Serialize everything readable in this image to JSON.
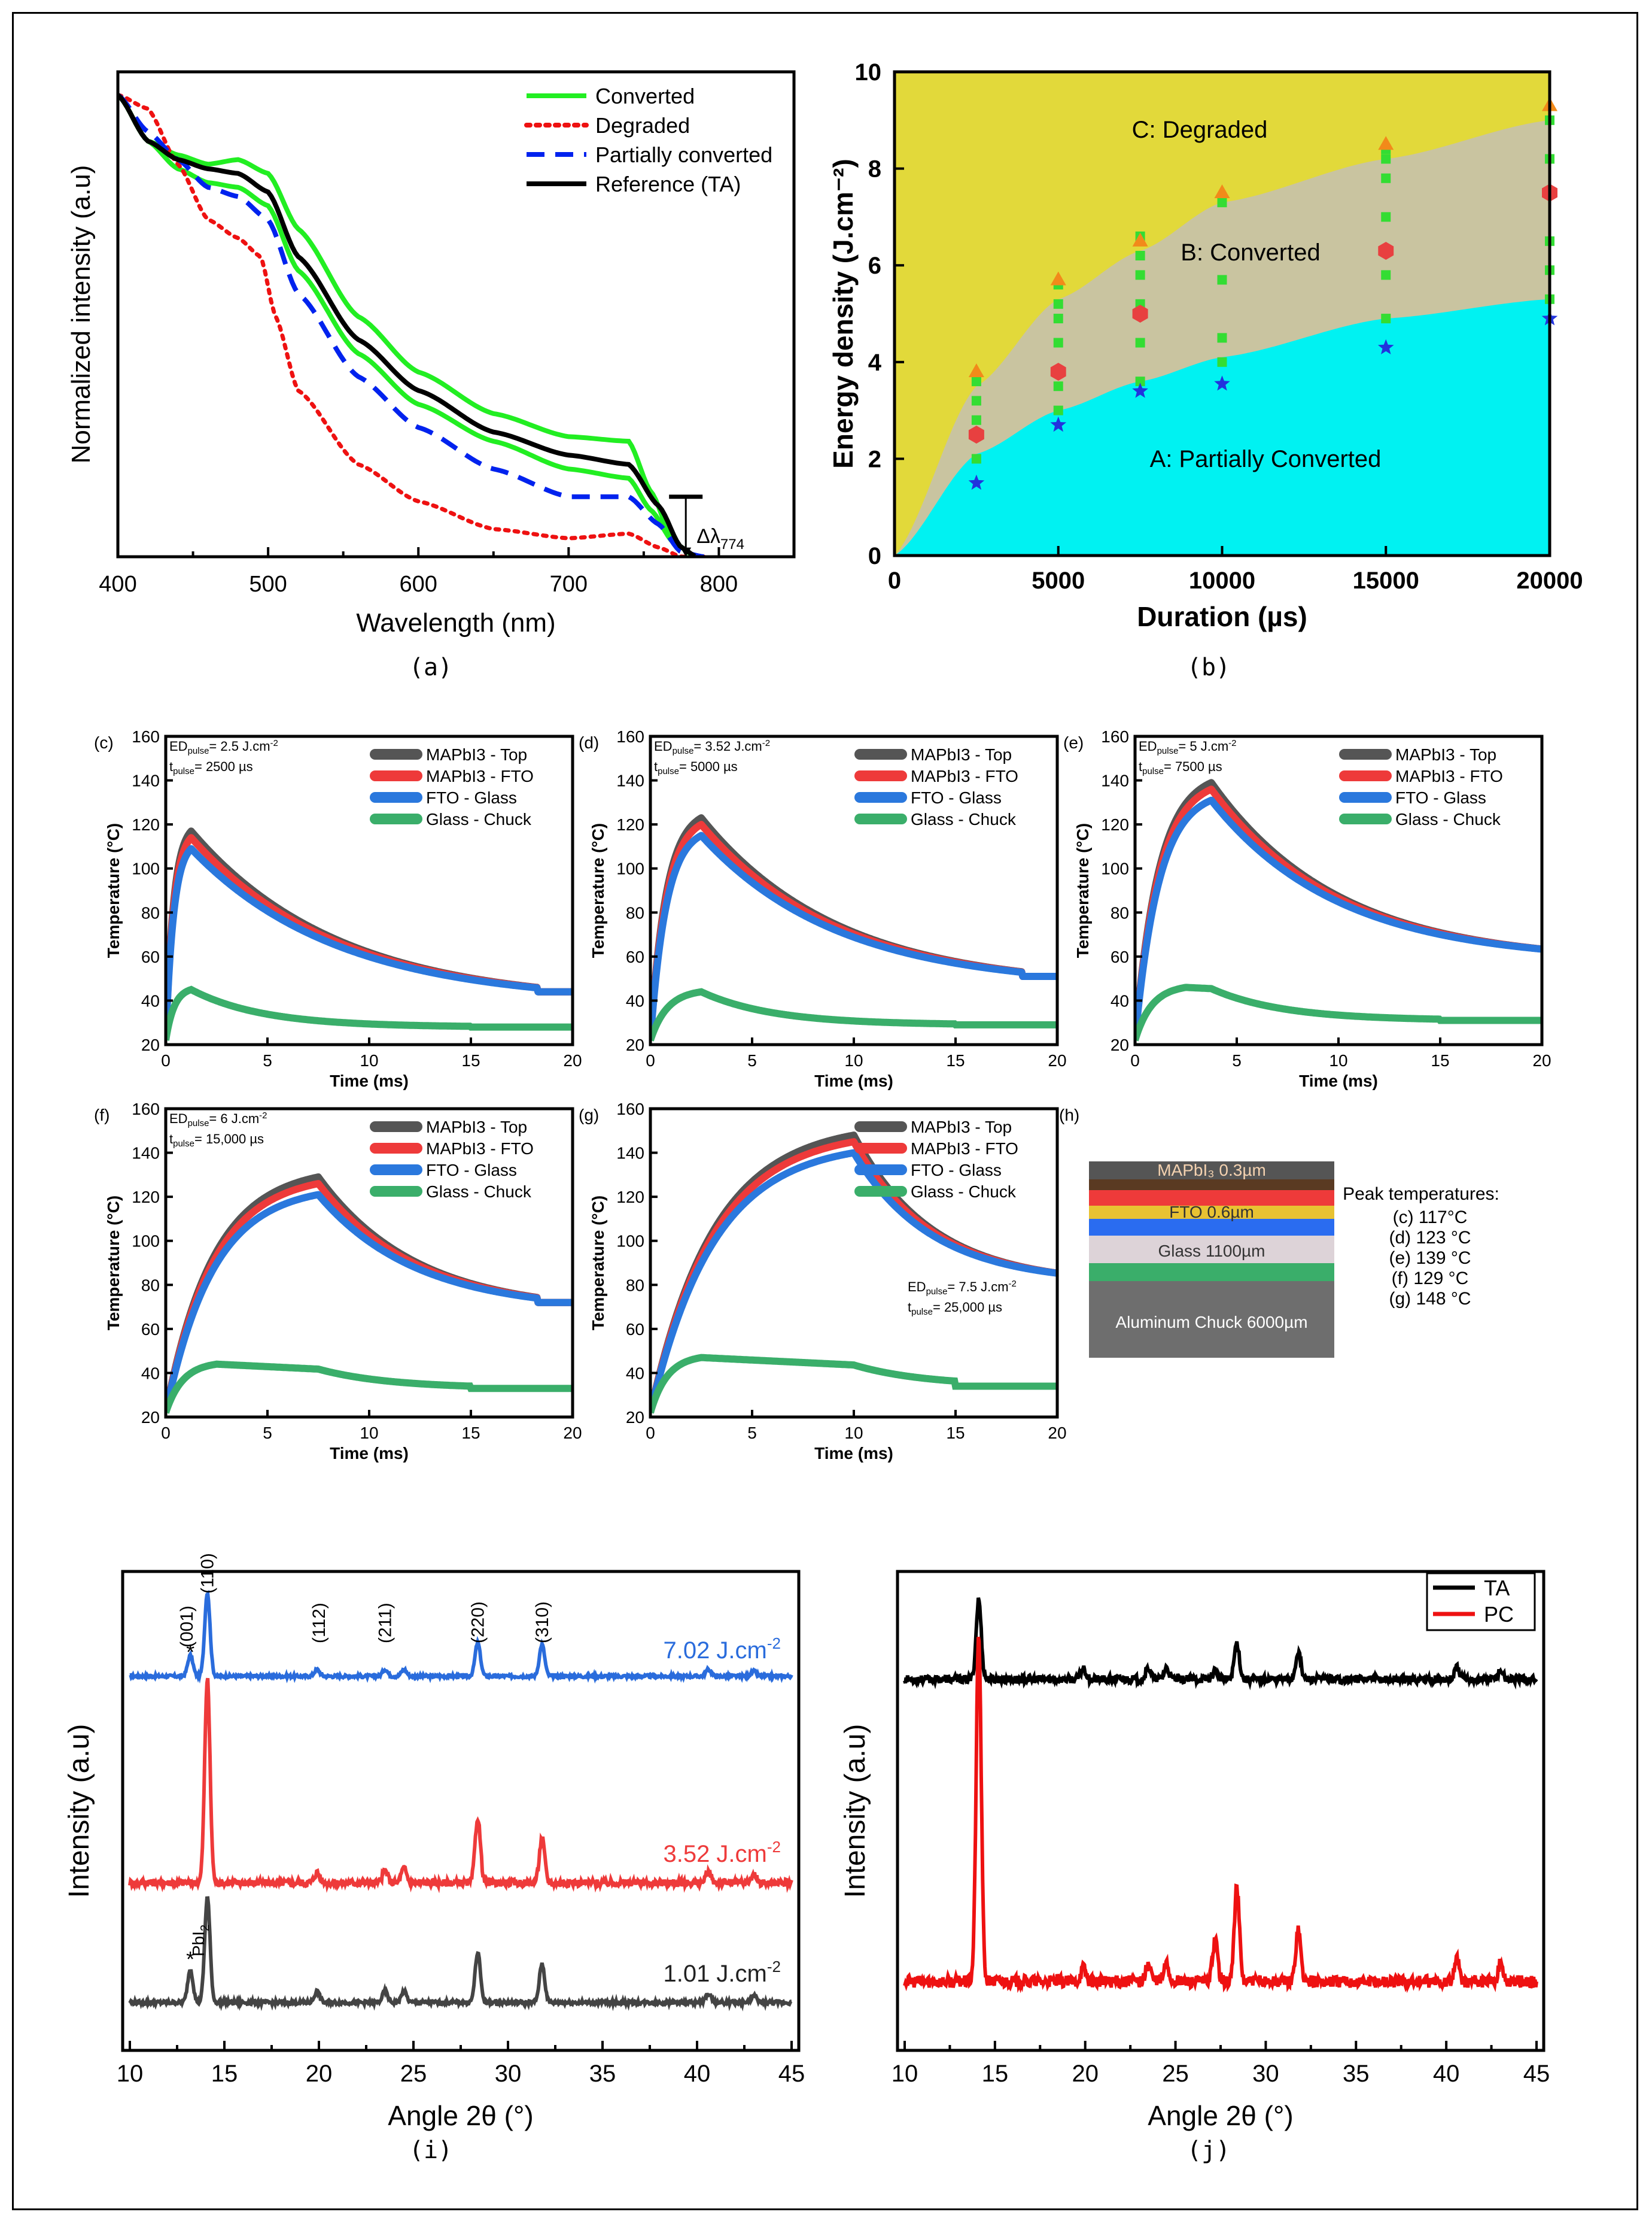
{
  "figure": {
    "captions": [
      "(a)",
      "(b)",
      "(i)",
      "(j)"
    ]
  },
  "chart_data": [
    {
      "id": "a",
      "type": "line",
      "title": "",
      "xlabel": "Wavelength (nm)",
      "ylabel": "Normalized intensity (a.u)",
      "xlim": [
        400,
        850
      ],
      "ylim": [
        0,
        1.05
      ],
      "xticks": [
        400,
        500,
        600,
        700,
        800
      ],
      "annotation": "Δλ774",
      "series": [
        {
          "name": "Converted",
          "color": "#22ee22",
          "style": "solid",
          "x": [
            400,
            420,
            440,
            460,
            480,
            500,
            520,
            560,
            600,
            650,
            700,
            740,
            755,
            770,
            785
          ],
          "y": [
            1.0,
            0.9,
            0.84,
            0.81,
            0.8,
            0.76,
            0.62,
            0.44,
            0.33,
            0.25,
            0.19,
            0.17,
            0.1,
            0.03,
            0.0
          ]
        },
        {
          "name": "Converted (upper)",
          "color": "#22ee22",
          "style": "solid",
          "x": [
            400,
            420,
            440,
            460,
            480,
            500,
            520,
            560,
            600,
            650,
            700,
            740,
            755,
            770,
            785
          ],
          "y": [
            1.0,
            0.9,
            0.87,
            0.85,
            0.86,
            0.83,
            0.71,
            0.52,
            0.4,
            0.31,
            0.26,
            0.25,
            0.14,
            0.03,
            0.0
          ]
        },
        {
          "name": "Degraded",
          "color": "#ee1111",
          "style": "dotted",
          "x": [
            400,
            420,
            440,
            460,
            480,
            495,
            505,
            520,
            560,
            600,
            650,
            700,
            740,
            760,
            775,
            790
          ],
          "y": [
            1.0,
            0.97,
            0.85,
            0.73,
            0.69,
            0.65,
            0.52,
            0.36,
            0.2,
            0.12,
            0.06,
            0.04,
            0.05,
            0.02,
            0.0,
            0.0
          ]
        },
        {
          "name": "Partially converted",
          "color": "#0022ee",
          "style": "dashed",
          "x": [
            400,
            420,
            440,
            460,
            480,
            500,
            520,
            560,
            600,
            650,
            700,
            740,
            760,
            775,
            790
          ],
          "y": [
            1.0,
            0.92,
            0.86,
            0.8,
            0.78,
            0.73,
            0.57,
            0.39,
            0.28,
            0.19,
            0.13,
            0.13,
            0.07,
            0.01,
            0.0
          ]
        },
        {
          "name": "Reference (TA)",
          "color": "#000000",
          "style": "solid",
          "x": [
            400,
            420,
            440,
            460,
            480,
            500,
            520,
            560,
            600,
            650,
            700,
            740,
            760,
            775,
            785
          ],
          "y": [
            1.0,
            0.9,
            0.86,
            0.84,
            0.83,
            0.79,
            0.65,
            0.47,
            0.36,
            0.27,
            0.22,
            0.2,
            0.11,
            0.02,
            0.0
          ]
        }
      ]
    },
    {
      "id": "b",
      "type": "area",
      "xlabel": "Duration (µs)",
      "ylabel": "Energy density (J.cm⁻²)",
      "xlim": [
        0,
        20000
      ],
      "ylim": [
        0,
        10
      ],
      "xticks": [
        0,
        5000,
        10000,
        15000,
        20000
      ],
      "yticks": [
        0,
        2,
        4,
        6,
        8,
        10
      ],
      "regions": [
        {
          "name": "C: Degraded",
          "color": "#e2d93a"
        },
        {
          "name": "B: Converted",
          "color": "#c9c4a0"
        },
        {
          "name": "A: Partially Converted",
          "color": "#00f2f2"
        }
      ],
      "lower_boundary": {
        "x": [
          0,
          2500,
          5000,
          7500,
          10000,
          15000,
          20000
        ],
        "y": [
          0,
          2.1,
          3.0,
          3.6,
          4.1,
          4.9,
          5.3
        ]
      },
      "upper_boundary": {
        "x": [
          0,
          2500,
          5000,
          7500,
          10000,
          15000,
          20000
        ],
        "y": [
          0,
          3.5,
          5.3,
          6.3,
          7.3,
          8.2,
          9.0
        ]
      },
      "markers": {
        "orange_triangle": {
          "x": [
            2500,
            5000,
            7500,
            10000,
            15000,
            20000
          ],
          "y": [
            3.8,
            5.7,
            6.5,
            7.5,
            8.5,
            9.3
          ]
        },
        "red_hexagon": {
          "x": [
            2500,
            5000,
            7500,
            15000,
            20000
          ],
          "y": [
            2.5,
            3.8,
            5.0,
            6.3,
            7.5
          ]
        },
        "blue_star": {
          "x": [
            2500,
            5000,
            7500,
            10000,
            15000,
            20000
          ],
          "y": [
            1.5,
            2.7,
            3.4,
            3.55,
            4.3,
            4.9
          ]
        },
        "green_square": {
          "x": [
            2500,
            2500,
            2500,
            2500,
            5000,
            5000,
            5000,
            5000,
            5000,
            5000,
            7500,
            7500,
            7500,
            7500,
            7500,
            7500,
            10000,
            10000,
            10000,
            10000,
            15000,
            15000,
            15000,
            15000,
            15000,
            15000,
            20000,
            20000,
            20000,
            20000,
            20000
          ],
          "y": [
            2.0,
            2.8,
            3.2,
            3.6,
            3.0,
            3.5,
            4.4,
            4.9,
            5.2,
            5.6,
            3.6,
            4.4,
            5.2,
            5.8,
            6.2,
            6.6,
            4.0,
            4.5,
            5.7,
            7.3,
            4.9,
            5.8,
            7.0,
            7.8,
            8.2,
            8.4,
            5.3,
            5.9,
            6.5,
            8.2,
            9.0
          ]
        }
      }
    },
    {
      "id": "c",
      "type": "line",
      "panel": "(c)",
      "params": [
        "ED",
        "pulse",
        "= 2.5 J.cm",
        "-2",
        "t",
        "pulse",
        "= 2500 µs"
      ],
      "xlabel": "Time (ms)",
      "ylabel": "Temperature (°C)",
      "xlim": [
        0,
        20
      ],
      "ylim": [
        20,
        160
      ],
      "xticks": [
        0,
        5,
        10,
        15,
        20
      ],
      "yticks": [
        20,
        40,
        60,
        80,
        100,
        120,
        140,
        160
      ],
      "peak": 117,
      "pulse_ms": 1.25,
      "top_end": 44,
      "chuck_peak": 45,
      "chuck_end": 28,
      "series": [
        {
          "name": "MAPbI3 - Top",
          "color": "#555555"
        },
        {
          "name": "MAPbI3 - FTO",
          "color": "#ee3a3a"
        },
        {
          "name": "FTO - Glass",
          "color": "#2a78dd"
        },
        {
          "name": "Glass - Chuck",
          "color": "#3aae6a"
        }
      ]
    },
    {
      "id": "d",
      "type": "line",
      "panel": "(d)",
      "params": [
        "ED",
        "pulse",
        "= 3.52 J.cm",
        "-2",
        "t",
        "pulse",
        "= 5000 µs"
      ],
      "xlabel": "Time (ms)",
      "ylabel": "Temperature (°C)",
      "xlim": [
        0,
        20
      ],
      "ylim": [
        20,
        160
      ],
      "xticks": [
        0,
        5,
        10,
        15,
        20
      ],
      "yticks": [
        20,
        40,
        60,
        80,
        100,
        120,
        140,
        160
      ],
      "peak": 123,
      "pulse_ms": 2.5,
      "top_end": 51,
      "chuck_peak": 44,
      "chuck_end": 29,
      "series": [
        {
          "name": "MAPbI3 - Top",
          "color": "#555555"
        },
        {
          "name": "MAPbI3 - FTO",
          "color": "#ee3a3a"
        },
        {
          "name": "FTO - Glass",
          "color": "#2a78dd"
        },
        {
          "name": "Glass - Chuck",
          "color": "#3aae6a"
        }
      ]
    },
    {
      "id": "e",
      "type": "line",
      "panel": "(e)",
      "params": [
        "ED",
        "pulse",
        "= 5 J.cm",
        "-2",
        "t",
        "pulse",
        "= 7500 µs"
      ],
      "xlabel": "Time (ms)",
      "ylabel": "Temperature (°C)",
      "xlim": [
        0,
        20
      ],
      "ylim": [
        20,
        160
      ],
      "xticks": [
        0,
        5,
        10,
        15,
        20
      ],
      "yticks": [
        20,
        40,
        60,
        80,
        100,
        120,
        140,
        160
      ],
      "peak": 139,
      "pulse_ms": 3.75,
      "top_end": 63,
      "chuck_peak": 46,
      "chuck_end": 31,
      "series": [
        {
          "name": "MAPbI3 - Top",
          "color": "#555555"
        },
        {
          "name": "MAPbI3 - FTO",
          "color": "#ee3a3a"
        },
        {
          "name": "FTO - Glass",
          "color": "#2a78dd"
        },
        {
          "name": "Glass - Chuck",
          "color": "#3aae6a"
        }
      ]
    },
    {
      "id": "f",
      "type": "line",
      "panel": "(f)",
      "params": [
        "ED",
        "pulse",
        "= 6 J.cm",
        "-2",
        "t",
        "pulse",
        "= 15,000 µs"
      ],
      "xlabel": "Time (ms)",
      "ylabel": "Temperature (°C)",
      "xlim": [
        0,
        20
      ],
      "ylim": [
        20,
        160
      ],
      "xticks": [
        0,
        5,
        10,
        15,
        20
      ],
      "yticks": [
        20,
        40,
        60,
        80,
        100,
        120,
        140,
        160
      ],
      "peak": 129,
      "pulse_ms": 7.5,
      "top_end": 72,
      "chuck_peak": 44,
      "chuck_end": 33,
      "series": [
        {
          "name": "MAPbI3 - Top",
          "color": "#555555"
        },
        {
          "name": "MAPbI3 - FTO",
          "color": "#ee3a3a"
        },
        {
          "name": "FTO - Glass",
          "color": "#2a78dd"
        },
        {
          "name": "Glass - Chuck",
          "color": "#3aae6a"
        }
      ]
    },
    {
      "id": "g",
      "type": "line",
      "panel": "(g)",
      "params": [
        "ED",
        "pulse",
        "= 7.5 J.cm",
        "-2",
        "t",
        "pulse",
        "= 25,000 µs"
      ],
      "xlabel": "Time (ms)",
      "ylabel": "Temperature (°C)",
      "xlim": [
        0,
        20
      ],
      "ylim": [
        20,
        160
      ],
      "xticks": [
        0,
        5,
        10,
        15,
        20
      ],
      "yticks": [
        20,
        40,
        60,
        80,
        100,
        120,
        140,
        160
      ],
      "peak": 148,
      "pulse_ms": 10,
      "top_end": 85,
      "chuck_peak": 47,
      "chuck_end": 34,
      "series": [
        {
          "name": "MAPbI3 - Top",
          "color": "#555555"
        },
        {
          "name": "MAPbI3 - FTO",
          "color": "#ee3a3a"
        },
        {
          "name": "FTO - Glass",
          "color": "#2a78dd"
        },
        {
          "name": "Glass - Chuck",
          "color": "#3aae6a"
        }
      ]
    },
    {
      "id": "h",
      "type": "table",
      "panel": "(h)",
      "layers": [
        {
          "label": "",
          "color": "#555555"
        },
        {
          "label": "MAPbI₃ 0.3µm",
          "color": "#5a3a22"
        },
        {
          "label": "",
          "color": "#ee3a3a"
        },
        {
          "label": "FTO 0.6µm",
          "color": "#e8c232"
        },
        {
          "label": "",
          "color": "#2a6cf0"
        },
        {
          "label": "Glass 1100µm",
          "color": "#ddd3d8"
        },
        {
          "label": "",
          "color": "#3aae6a"
        },
        {
          "label": "Aluminum Chuck 6000µm",
          "color": "#6e6e6e"
        }
      ],
      "peak_title": "Peak temperatures:",
      "peaks": [
        "(c) 117°C",
        "(d) 123 °C",
        "(e) 139 °C",
        "(f) 129 °C",
        "(g) 148 °C"
      ]
    },
    {
      "id": "i",
      "type": "line",
      "xlabel": "Angle 2θ (°)",
      "ylabel": "Intensity (a.u)",
      "xlim": [
        10,
        45
      ],
      "xticks": [
        10,
        15,
        20,
        25,
        30,
        35,
        40,
        45
      ],
      "peaks_2theta": [
        13.2,
        14.1,
        19.9,
        23.5,
        24.5,
        28.4,
        31.8,
        40.6,
        43.0
      ],
      "peak_labels": [
        {
          "text": "(001)",
          "x": 13.0
        },
        {
          "text": "(110)",
          "x": 14.1
        },
        {
          "text": "(112)",
          "x": 20.0
        },
        {
          "text": "(211)",
          "x": 23.5
        },
        {
          "text": "(220)",
          "x": 28.4
        },
        {
          "text": "(310)",
          "x": 31.8
        }
      ],
      "pbi2_label": "PbI2",
      "series": [
        {
          "name": "7.02 J.cm-2",
          "label_main": "7.02 J.cm",
          "label_sup": "-2",
          "color": "#2a6cdc",
          "heights": [
            0.25,
            1.0,
            0.08,
            0.08,
            0.08,
            0.4,
            0.38,
            0.08,
            0.06
          ]
        },
        {
          "name": "3.52 J.cm-2",
          "label_main": "3.52 J.cm",
          "label_sup": "-2",
          "color": "#ee3a3a",
          "heights": [
            0.0,
            1.0,
            0.05,
            0.06,
            0.07,
            0.32,
            0.22,
            0.05,
            0.04
          ]
        },
        {
          "name": "1.01 J.cm-2",
          "label_main": "1.01 J.cm",
          "label_sup": "-2",
          "color": "#444444",
          "heights": [
            0.3,
            0.95,
            0.1,
            0.1,
            0.1,
            0.45,
            0.35,
            0.08,
            0.06
          ]
        }
      ]
    },
    {
      "id": "j",
      "type": "line",
      "xlabel": "Angle 2θ (°)",
      "ylabel": "Intensity (a.u)",
      "xlim": [
        10,
        45
      ],
      "xticks": [
        10,
        15,
        20,
        25,
        30,
        35,
        40,
        45
      ],
      "peaks_2theta": [
        14.1,
        19.9,
        23.5,
        24.5,
        27.2,
        28.4,
        31.8,
        40.6,
        43.0
      ],
      "series": [
        {
          "name": "TA",
          "color": "#000000",
          "heights": [
            0.35,
            0.05,
            0.05,
            0.05,
            0.04,
            0.16,
            0.12,
            0.05,
            0.04
          ]
        },
        {
          "name": "PC",
          "color": "#ee1111",
          "heights": [
            1.0,
            0.04,
            0.05,
            0.05,
            0.12,
            0.27,
            0.15,
            0.06,
            0.05
          ]
        }
      ]
    }
  ]
}
